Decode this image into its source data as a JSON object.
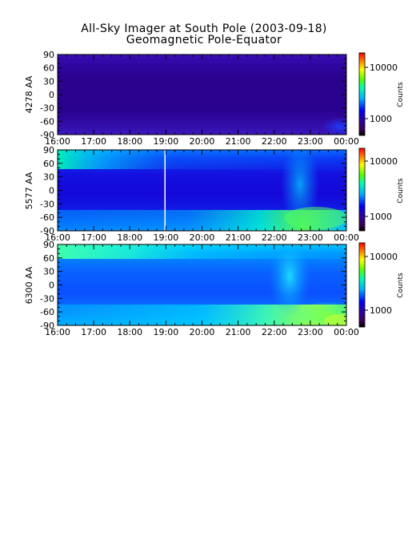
{
  "title": "All-Sky Imager at South Pole (2003-09-18)",
  "subtitle": "Geomagnetic Pole-Equator",
  "colors": {
    "colormap": [
      "#000000",
      "#40005a",
      "#2a00a0",
      "#0000ff",
      "#00b4ff",
      "#00ffaa",
      "#55ff00",
      "#ffff00",
      "#ff8000",
      "#ff0000"
    ]
  },
  "chart_data": [
    {
      "type": "heatmap",
      "ylabel": "4278 AA",
      "x_tick_labels": [
        "16:00",
        "17:00",
        "18:00",
        "19:00",
        "20:00",
        "21:00",
        "22:00",
        "23:00",
        "00:00"
      ],
      "y_tick_labels": [
        "90",
        "60",
        "30",
        "0",
        "-30",
        "-60",
        "-90"
      ],
      "y_ticks": [
        90,
        60,
        30,
        0,
        -30,
        -60,
        -90
      ],
      "ylim": [
        -90,
        90
      ],
      "colorbar": {
        "label": "Counts",
        "tick_labels": [
          "10000",
          "1000"
        ],
        "ticks": [
          10000,
          1000
        ],
        "scale": "log"
      }
    },
    {
      "type": "heatmap",
      "ylabel": "5577 AA",
      "x_tick_labels": [
        "16:00",
        "17:00",
        "18:00",
        "19:00",
        "20:00",
        "21:00",
        "22:00",
        "23:00",
        "00:00"
      ],
      "y_tick_labels": [
        "90",
        "60",
        "30",
        "0",
        "-30",
        "-60",
        "-90"
      ],
      "y_ticks": [
        90,
        60,
        30,
        0,
        -30,
        -60,
        -90
      ],
      "ylim": [
        -90,
        90
      ],
      "colorbar": {
        "label": "Counts",
        "tick_labels": [
          "10000",
          "1000"
        ],
        "ticks": [
          10000,
          1000
        ],
        "scale": "log"
      }
    },
    {
      "type": "heatmap",
      "ylabel": "6300 AA",
      "x_tick_labels": [
        "16:00",
        "17:00",
        "18:00",
        "19:00",
        "20:00",
        "21:00",
        "22:00",
        "23:00",
        "00:00"
      ],
      "y_tick_labels": [
        "90",
        "60",
        "30",
        "0",
        "-30",
        "-60",
        "-90"
      ],
      "y_ticks": [
        90,
        60,
        30,
        0,
        -30,
        -60,
        -90
      ],
      "ylim": [
        -90,
        90
      ],
      "colorbar": {
        "label": "Counts",
        "tick_labels": [
          "10000",
          "1000"
        ],
        "ticks": [
          10000,
          1000
        ],
        "scale": "log"
      }
    }
  ]
}
